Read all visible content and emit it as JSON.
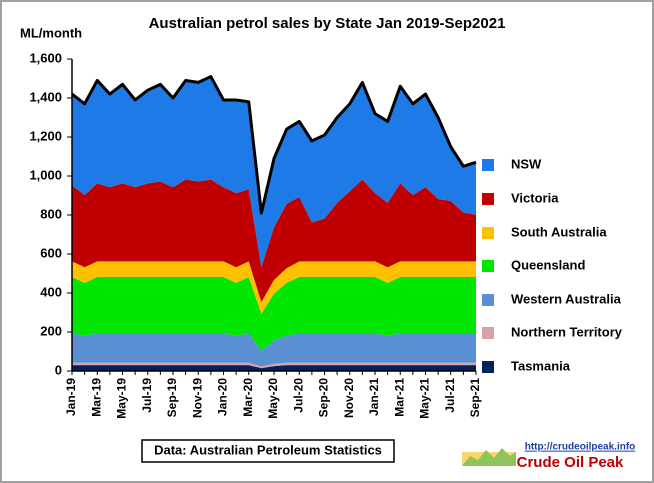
{
  "chart_data": {
    "type": "stacked_area",
    "title": "Australian petrol sales by State Jan  2019-Sep2021",
    "y_label": "ML/month",
    "source": "Data: Australian Petroleum Statistics",
    "watermark_url": "http://crudeoilpeak.info",
    "watermark_name": "Crude Oil Peak",
    "categories": [
      "Jan-19",
      null,
      "Mar-19",
      null,
      "May-19",
      null,
      "Jul-19",
      null,
      "Sep-19",
      null,
      "Nov-19",
      null,
      "Jan-20",
      null,
      "Mar-20",
      null,
      "May-20",
      null,
      "Jul-20",
      null,
      "Sep-20",
      null,
      "Nov-20",
      null,
      "Jan-21",
      null,
      "Mar-21",
      null,
      "May-21",
      null,
      "Jul-21",
      null,
      "Sep-21"
    ],
    "ylim": [
      0,
      1600
    ],
    "yticks": [
      0,
      200,
      400,
      600,
      800,
      {
        "value": 1000,
        "label": "1,000"
      },
      {
        "value": 1200,
        "label": "1,200"
      },
      {
        "value": 1400,
        "label": "1,400"
      },
      {
        "value": 1600,
        "label": "1,600"
      }
    ],
    "total_line_color": "#000000",
    "series": [
      {
        "name": "Tasmania",
        "color": "#002060",
        "values": [
          30,
          30,
          30,
          30,
          30,
          30,
          30,
          30,
          30,
          30,
          30,
          30,
          30,
          30,
          30,
          15,
          25,
          30,
          30,
          30,
          30,
          30,
          30,
          30,
          30,
          30,
          30,
          30,
          30,
          30,
          30,
          30,
          30
        ]
      },
      {
        "name": "Northern Territory",
        "color": "#d9a3a3",
        "values": [
          12,
          12,
          12,
          12,
          12,
          12,
          12,
          12,
          12,
          12,
          12,
          12,
          12,
          12,
          12,
          8,
          12,
          12,
          12,
          12,
          12,
          12,
          12,
          12,
          12,
          12,
          12,
          12,
          12,
          12,
          12,
          12,
          12
        ]
      },
      {
        "name": "Western Australia",
        "color": "#5b8fd4",
        "values": [
          150,
          140,
          150,
          150,
          150,
          150,
          150,
          150,
          150,
          150,
          150,
          150,
          150,
          140,
          150,
          80,
          120,
          140,
          150,
          150,
          150,
          150,
          150,
          150,
          150,
          140,
          150,
          150,
          150,
          150,
          150,
          150,
          150
        ]
      },
      {
        "name": "Queensland",
        "color": "#00e600",
        "values": [
          290,
          270,
          290,
          290,
          290,
          290,
          290,
          290,
          290,
          290,
          290,
          290,
          290,
          270,
          290,
          190,
          240,
          270,
          290,
          290,
          290,
          290,
          290,
          290,
          290,
          270,
          290,
          290,
          290,
          290,
          290,
          290,
          290
        ]
      },
      {
        "name": "South Australia",
        "color": "#ffc000",
        "values": [
          80,
          80,
          80,
          80,
          80,
          80,
          80,
          80,
          80,
          80,
          80,
          80,
          80,
          80,
          80,
          60,
          70,
          75,
          80,
          80,
          80,
          80,
          80,
          80,
          80,
          80,
          80,
          80,
          80,
          80,
          80,
          80,
          80
        ]
      },
      {
        "name": "Victoria",
        "color": "#c00000",
        "values": [
          390,
          370,
          400,
          380,
          400,
          380,
          400,
          410,
          380,
          420,
          410,
          420,
          380,
          380,
          370,
          180,
          270,
          330,
          330,
          200,
          220,
          300,
          360,
          420,
          350,
          330,
          400,
          340,
          380,
          320,
          310,
          250,
          240
        ]
      },
      {
        "name": "NSW",
        "color": "#1e7ae6",
        "values": [
          468,
          468,
          528,
          478,
          508,
          448,
          478,
          498,
          458,
          508,
          508,
          528,
          448,
          478,
          448,
          277,
          353,
          383,
          388,
          418,
          428,
          438,
          448,
          498,
          408,
          418,
          498,
          468,
          478,
          418,
          278,
          238,
          268
        ]
      }
    ]
  }
}
